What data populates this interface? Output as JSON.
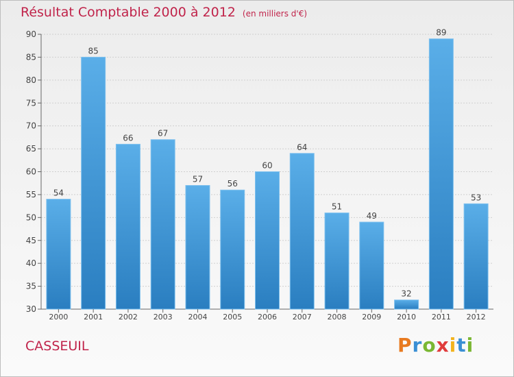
{
  "header": {
    "title": "Résultat Comptable 2000 à 2012",
    "subtitle": "(en milliers d'€)"
  },
  "footer": {
    "place": "CASSEUIL",
    "logo_text": "Proxiti",
    "logo_colors": [
      "#e87a20",
      "#3a8fd4",
      "#7ab733",
      "#e03c3c",
      "#f2b31d",
      "#3a8fd4",
      "#7ab733"
    ]
  },
  "chart_data": {
    "type": "bar",
    "categories": [
      "2000",
      "2001",
      "2002",
      "2003",
      "2004",
      "2005",
      "2006",
      "2007",
      "2008",
      "2009",
      "2010",
      "2011",
      "2012"
    ],
    "values": [
      54,
      85,
      66,
      67,
      57,
      56,
      60,
      64,
      51,
      49,
      32,
      89,
      53
    ],
    "ylim": [
      30,
      90
    ],
    "yticks": [
      30,
      35,
      40,
      45,
      50,
      55,
      60,
      65,
      70,
      75,
      80,
      85,
      90
    ],
    "grid": true,
    "bar_color_top": "#5aaee8",
    "bar_color_bottom": "#2a7ec0",
    "title": "Résultat Comptable 2000 à 2012",
    "xlabel": "",
    "ylabel": ""
  }
}
